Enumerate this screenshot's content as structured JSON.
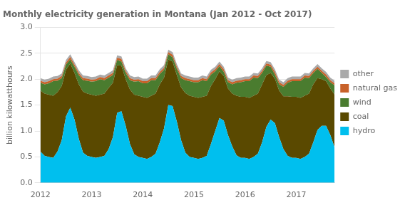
{
  "chart_data": {
    "type": "area",
    "title": "Monthly electricity generation in Montana (Jan 2012 - Oct 2017)",
    "ylabel": "billion kilowatthours",
    "stacked": true,
    "grid": true,
    "legend": "right",
    "categories": [
      "2012",
      null,
      null,
      null,
      null,
      null,
      null,
      null,
      null,
      null,
      null,
      null,
      "2013",
      null,
      null,
      null,
      null,
      null,
      null,
      null,
      null,
      null,
      null,
      null,
      "2014",
      null,
      null,
      null,
      null,
      null,
      null,
      null,
      null,
      null,
      null,
      null,
      "2015",
      null,
      null,
      null,
      null,
      null,
      null,
      null,
      null,
      null,
      null,
      null,
      "2016",
      null,
      null,
      null,
      null,
      null,
      null,
      null,
      null,
      null,
      null,
      null,
      "2017",
      null,
      null,
      null,
      null,
      null,
      null,
      null,
      null,
      null
    ],
    "ylim": [
      0,
      3.0
    ],
    "yticks": [
      {
        "value": 0,
        "label": "0.0"
      },
      0.5,
      {
        "value": 1,
        "label": "1.0"
      },
      1.5,
      {
        "value": 2,
        "label": "2.0"
      },
      2.5,
      {
        "value": 3,
        "label": "3.0"
      }
    ],
    "series": [
      {
        "name": "hydro",
        "color": "#00bfee",
        "values": [
          0.6,
          0.52,
          0.5,
          0.48,
          0.6,
          0.82,
          1.28,
          1.45,
          1.22,
          0.85,
          0.58,
          0.52,
          0.5,
          0.48,
          0.5,
          0.52,
          0.65,
          0.88,
          1.35,
          1.38,
          1.1,
          0.75,
          0.55,
          0.5,
          0.48,
          0.46,
          0.5,
          0.56,
          0.78,
          1.05,
          1.5,
          1.48,
          1.18,
          0.82,
          0.58,
          0.5,
          0.48,
          0.46,
          0.48,
          0.52,
          0.75,
          1.0,
          1.25,
          1.2,
          0.92,
          0.7,
          0.53,
          0.48,
          0.48,
          0.46,
          0.5,
          0.56,
          0.78,
          1.08,
          1.22,
          1.15,
          0.88,
          0.65,
          0.52,
          0.48,
          0.48,
          0.46,
          0.5,
          0.56,
          0.78,
          1.02,
          1.1,
          1.1,
          0.92,
          0.68
        ]
      },
      {
        "name": "coal",
        "color": "#5a4900",
        "values": [
          1.18,
          1.2,
          1.2,
          1.2,
          1.15,
          1.05,
          0.9,
          0.85,
          0.9,
          1.05,
          1.18,
          1.2,
          1.2,
          1.2,
          1.2,
          1.2,
          1.18,
          1.05,
          0.92,
          0.88,
          0.9,
          1.05,
          1.15,
          1.18,
          1.18,
          1.18,
          1.18,
          1.16,
          1.12,
          0.98,
          0.88,
          0.86,
          0.9,
          1.02,
          1.15,
          1.18,
          1.18,
          1.18,
          1.18,
          1.16,
          1.12,
          1.0,
          0.9,
          0.86,
          0.9,
          1.02,
          1.15,
          1.18,
          1.18,
          1.18,
          1.18,
          1.16,
          1.12,
          1.0,
          0.9,
          0.86,
          0.9,
          1.02,
          1.15,
          1.18,
          1.18,
          1.18,
          1.18,
          1.16,
          1.12,
          1.0,
          0.9,
          0.86,
          0.9,
          1.02
        ]
      },
      {
        "name": "wind",
        "color": "#4a7c2f",
        "values": [
          0.15,
          0.18,
          0.22,
          0.28,
          0.22,
          0.15,
          0.1,
          0.08,
          0.12,
          0.18,
          0.22,
          0.25,
          0.25,
          0.28,
          0.3,
          0.26,
          0.2,
          0.15,
          0.1,
          0.08,
          0.12,
          0.18,
          0.25,
          0.28,
          0.26,
          0.28,
          0.3,
          0.26,
          0.2,
          0.15,
          0.1,
          0.08,
          0.12,
          0.18,
          0.25,
          0.28,
          0.28,
          0.3,
          0.32,
          0.28,
          0.22,
          0.15,
          0.1,
          0.08,
          0.12,
          0.18,
          0.25,
          0.28,
          0.3,
          0.32,
          0.35,
          0.3,
          0.22,
          0.18,
          0.12,
          0.08,
          0.12,
          0.18,
          0.26,
          0.3,
          0.3,
          0.32,
          0.35,
          0.3,
          0.22,
          0.18,
          0.12,
          0.08,
          0.12,
          0.18
        ]
      },
      {
        "name": "natural gas",
        "color": "#c8622a",
        "values": [
          0.04,
          0.04,
          0.04,
          0.04,
          0.04,
          0.04,
          0.04,
          0.05,
          0.04,
          0.04,
          0.04,
          0.04,
          0.04,
          0.04,
          0.04,
          0.04,
          0.04,
          0.04,
          0.04,
          0.05,
          0.04,
          0.04,
          0.04,
          0.04,
          0.04,
          0.04,
          0.04,
          0.04,
          0.04,
          0.04,
          0.04,
          0.05,
          0.04,
          0.04,
          0.04,
          0.04,
          0.04,
          0.04,
          0.04,
          0.04,
          0.04,
          0.04,
          0.04,
          0.05,
          0.04,
          0.04,
          0.04,
          0.04,
          0.04,
          0.04,
          0.04,
          0.04,
          0.04,
          0.04,
          0.04,
          0.05,
          0.04,
          0.04,
          0.04,
          0.04,
          0.04,
          0.04,
          0.04,
          0.04,
          0.04,
          0.04,
          0.04,
          0.05,
          0.04,
          0.04
        ]
      },
      {
        "name": "other",
        "color": "#aaaaaa",
        "values": [
          0.05,
          0.05,
          0.05,
          0.05,
          0.05,
          0.05,
          0.05,
          0.05,
          0.05,
          0.05,
          0.05,
          0.05,
          0.05,
          0.05,
          0.05,
          0.05,
          0.05,
          0.05,
          0.05,
          0.05,
          0.05,
          0.05,
          0.05,
          0.05,
          0.05,
          0.05,
          0.05,
          0.05,
          0.05,
          0.05,
          0.05,
          0.05,
          0.05,
          0.05,
          0.05,
          0.05,
          0.05,
          0.05,
          0.05,
          0.05,
          0.05,
          0.05,
          0.05,
          0.05,
          0.05,
          0.05,
          0.05,
          0.05,
          0.05,
          0.05,
          0.05,
          0.05,
          0.05,
          0.05,
          0.05,
          0.05,
          0.05,
          0.05,
          0.05,
          0.05,
          0.05,
          0.05,
          0.05,
          0.05,
          0.05,
          0.05,
          0.05,
          0.05,
          0.05,
          0.05
        ]
      }
    ]
  }
}
